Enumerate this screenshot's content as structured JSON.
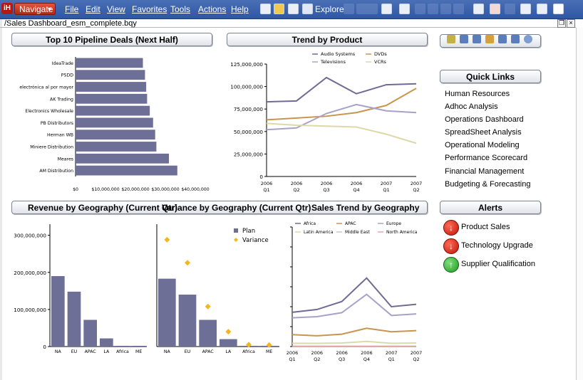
{
  "toolbar": {
    "logo_label": "iH",
    "navigate_label": "Navigate",
    "menus": [
      "File",
      "Edit",
      "View",
      "Favorites",
      "Tools",
      "Actions",
      "Help"
    ],
    "explore_label": "Explore"
  },
  "document": {
    "path": "/Sales Dashboard_esm_complete.bqy"
  },
  "panels": {
    "top10_title": "Top 10 Pipeline Deals (Next Half)",
    "trend_product_title": "Trend by Product",
    "quick_links_title": "Quick Links",
    "revenue_geo_title": "Revenue by Geography (Current Qtr)",
    "variance_geo_title": "Variance by Geography (Current Qtr)",
    "sales_trend_geo_title": "Sales Trend by Geography",
    "alerts_title": "Alerts"
  },
  "quick_links": [
    "Human Resources",
    "Adhoc Analysis",
    "Operations Dashboard",
    "SpreadSheet Analysis",
    "Operational Modeling",
    "Performance Scorecard",
    "Financial Management",
    "Budgeting & Forecasting"
  ],
  "alerts": [
    {
      "label": "Product Sales",
      "status": "down",
      "color": "#c01408"
    },
    {
      "label": "Technology Upgrade",
      "status": "down",
      "color": "#c01408"
    },
    {
      "label": "Supplier Qualification",
      "status": "up",
      "color": "#1f9a1f"
    }
  ],
  "colors": {
    "bar": "#6e6f96",
    "axis": "#000000",
    "variance_marker": "#f3b71d"
  },
  "chart_data": [
    {
      "id": "top10",
      "type": "bar",
      "orientation": "horizontal",
      "categories": [
        "IdeaTrade",
        "PSDD",
        "electrónica al por mayor",
        "AK Trading",
        "Electronics Wholesale",
        "PB Distributors",
        "Herman WB",
        "Miniere Distribution",
        "Meares",
        "AM Distribution"
      ],
      "values": [
        22500000,
        23200000,
        23600000,
        23900000,
        24800000,
        25900000,
        26600000,
        27000000,
        31200000,
        34000000
      ],
      "xticks": [
        "$0",
        "$10,000,000",
        "$20,000,000",
        "$30,000,000",
        "$40,000,000"
      ],
      "xlim": [
        0,
        40000000
      ]
    },
    {
      "id": "trend_product",
      "type": "line",
      "x": [
        "2006 Q1",
        "2006 Q2",
        "2006 Q3",
        "2006 Q4",
        "2007 Q1",
        "2007 Q2"
      ],
      "xticks_top": [
        "2006",
        "2006",
        "2006",
        "2006",
        "2007",
        "2007"
      ],
      "xticks_bottom": [
        "Q1",
        "Q2",
        "Q3",
        "Q4",
        "Q1",
        "Q2"
      ],
      "yticks": [
        "0",
        "25,000,000",
        "50,000,000",
        "75,000,000",
        "100,000,000",
        "125,000,000"
      ],
      "ylim": [
        0,
        125000000
      ],
      "series": [
        {
          "name": "Audio Systems",
          "color": "#716a95",
          "values": [
            83000000,
            84000000,
            110000000,
            92000000,
            102000000,
            103000000
          ]
        },
        {
          "name": "DVDs",
          "color": "#c9954d",
          "values": [
            63000000,
            65000000,
            67000000,
            71000000,
            79000000,
            98000000
          ]
        },
        {
          "name": "Televisions",
          "color": "#a7a2ca",
          "values": [
            52000000,
            54000000,
            70000000,
            80000000,
            73000000,
            71000000
          ]
        },
        {
          "name": "VCRs",
          "color": "#dcd9a8",
          "values": [
            59000000,
            57000000,
            56000000,
            55000000,
            47000000,
            37000000
          ]
        }
      ]
    },
    {
      "id": "revenue_geo",
      "type": "bar",
      "categories": [
        "NA",
        "EU",
        "APAC",
        "LA",
        "Africa",
        "ME"
      ],
      "values": [
        190000000,
        148000000,
        72000000,
        22000000,
        2000000,
        2000000
      ],
      "yticks": [
        "0",
        "100,000,000",
        "200,000,000",
        "300,000,000"
      ],
      "ylim": [
        0,
        330000000
      ]
    },
    {
      "id": "variance_geo",
      "type": "bar",
      "categories": [
        "NA",
        "EU",
        "APAC",
        "LA",
        "Africa",
        "ME"
      ],
      "series": [
        {
          "name": "Plan",
          "values": [
            183000000,
            140000000,
            72000000,
            20000000,
            2000000,
            2000000
          ],
          "color": "#6e6f96"
        },
        {
          "name": "Variance",
          "values": [
            288000000,
            226000000,
            108000000,
            40000000,
            5000000,
            4000000
          ],
          "color": "#f3b71d"
        }
      ],
      "ylim": [
        0,
        330000000
      ]
    },
    {
      "id": "sales_trend_geo",
      "type": "line",
      "x": [
        "2006 Q1",
        "2006 Q2",
        "2006 Q3",
        "2006 Q4",
        "2007 Q1",
        "2007 Q2"
      ],
      "xticks_top": [
        "2006",
        "2006",
        "2006",
        "2006",
        "2007",
        "2007"
      ],
      "xticks_bottom": [
        "Q1",
        "Q2",
        "Q3",
        "Q4",
        "Q1",
        "Q2"
      ],
      "ylim": [
        0,
        300
      ],
      "series": [
        {
          "name": "Africa",
          "color": "#716a95",
          "values": [
            86,
            93,
            113,
            172,
            100,
            106
          ]
        },
        {
          "name": "APAC",
          "color": "#c9954d",
          "values": [
            30,
            27,
            31,
            46,
            37,
            40
          ]
        },
        {
          "name": "Europe",
          "color": "#a7a2ca",
          "values": [
            72,
            75,
            85,
            131,
            78,
            82
          ]
        },
        {
          "name": "Latin America",
          "color": "#dcd9a8",
          "values": [
            8,
            8,
            9,
            13,
            8,
            9
          ]
        },
        {
          "name": "Middle East",
          "color": "#c9c9c9",
          "values": [
            1,
            1,
            1,
            1,
            1,
            1
          ]
        },
        {
          "name": "North America",
          "color": "#e7a6a6",
          "values": [
            0,
            0,
            0,
            0,
            0,
            0
          ]
        }
      ]
    }
  ]
}
